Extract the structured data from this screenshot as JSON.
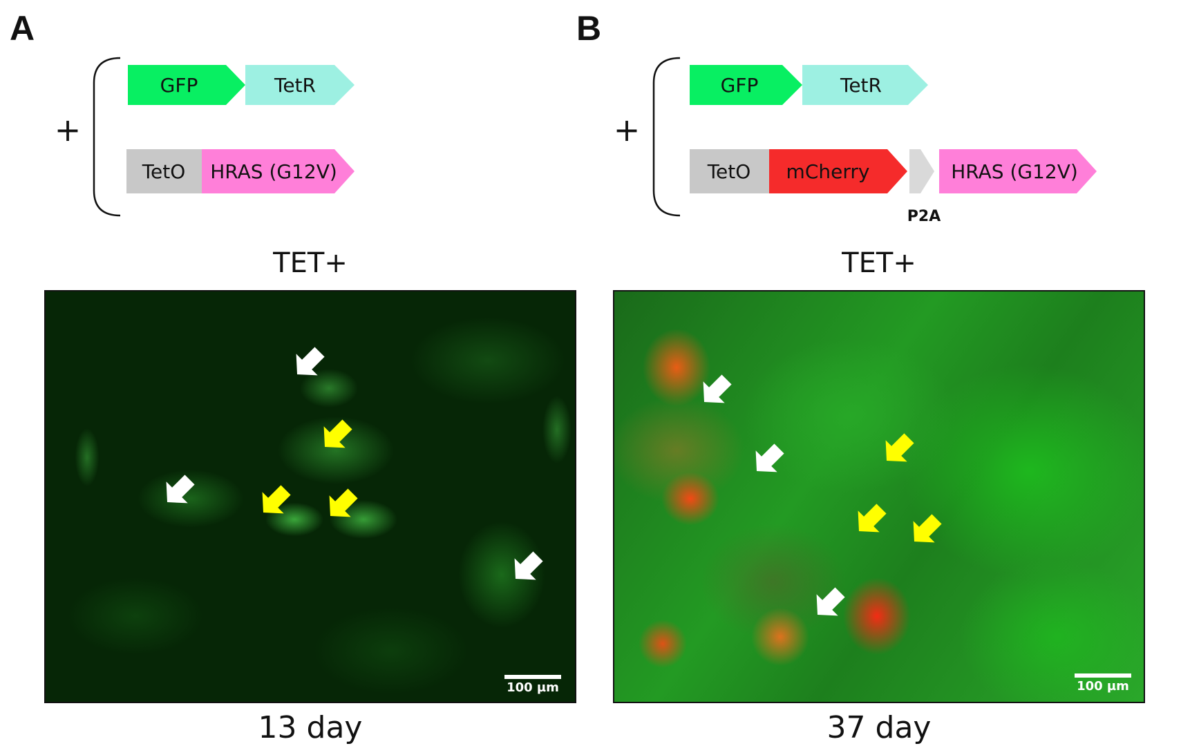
{
  "panels": [
    {
      "letter": "A",
      "plus": "+",
      "construct_row1": [
        "GFP",
        "TetR"
      ],
      "construct_row2": [
        "TetO",
        "HRAS (G12V)"
      ],
      "condition": "TET+",
      "day": "13 day",
      "scale_bar": "100 µm"
    },
    {
      "letter": "B",
      "plus": "+",
      "construct_row1": [
        "GFP",
        "TetR"
      ],
      "construct_row2": [
        "TetO",
        "mCherry",
        "HRAS (G12V)"
      ],
      "linker_label": "P2A",
      "condition": "TET+",
      "day": "37 day",
      "scale_bar": "100 µm"
    }
  ],
  "colors": {
    "gfp": "#08ef62",
    "tetr": "#9df0e2",
    "teto": "#c8c8c8",
    "hras": "#ff7fd9",
    "mcherry": "#f52b2b",
    "p2a": "#d9d9d9",
    "arrow_white": "#ffffff",
    "arrow_yellow": "#ffff00"
  }
}
